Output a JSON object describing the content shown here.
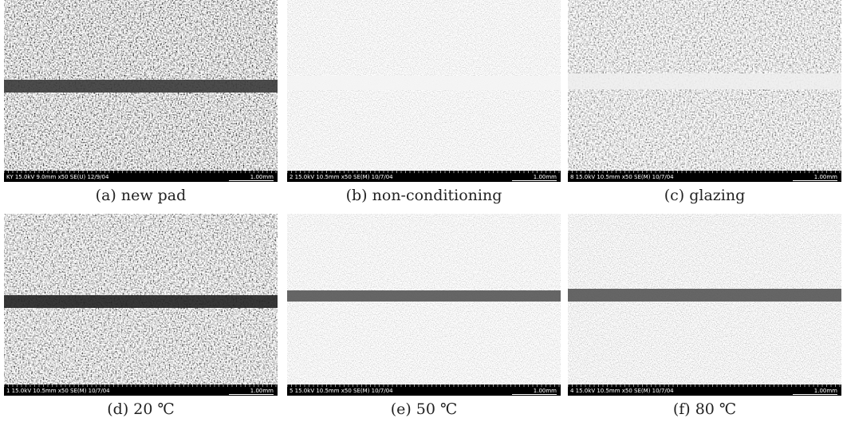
{
  "panels": [
    {
      "caption": "(a) new pad",
      "info": "KY 15.0kV 9.0mm x50 SE(U) 12/9/04",
      "scale": "1.00mm"
    },
    {
      "caption": "(b) non-conditioning",
      "info": "2 15.0kV 10.5mm x50 SE(M) 10/7/04",
      "scale": "1.00mm"
    },
    {
      "caption": "(c) glazing",
      "info": "8 15.0kV 10.5mm x50 SE(M) 10/7/04",
      "scale": "1.00mm"
    },
    {
      "caption": "(d) 20 ℃",
      "info": "1 15.0kV 10.5mm x50 SE(M) 10/7/04",
      "scale": "1.00mm"
    },
    {
      "caption": "(e) 50 ℃",
      "info": "5 15.0kV 10.5mm x50 SE(M) 10/7/04",
      "scale": "1.00mm"
    },
    {
      "caption": "(f) 80 ℃",
      "info": "4 15.0kV 10.5mm x50 SE(M) 10/7/04",
      "scale": "1.00mm"
    }
  ]
}
